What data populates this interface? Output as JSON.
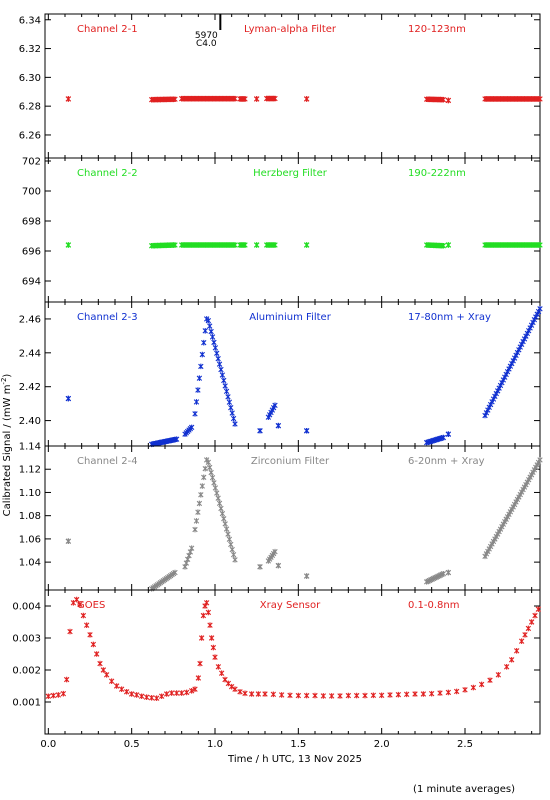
{
  "figure": {
    "xlabel": "Time / h UTC, 13 Nov 2025",
    "ylabel": "Calibrated Signal / (mW m",
    "ylabel_sup": "-2",
    "ylabel_tail": ")",
    "footnote": "(1 minute averages)",
    "x_ticks": [
      "0.0",
      "0.5",
      "1.0",
      "1.5",
      "2.0",
      "2.5"
    ],
    "marker_annotation": [
      "5970",
      "C4.0"
    ]
  },
  "chart_data": [
    {
      "type": "scatter",
      "channel": "Channel 2-1",
      "filter": "Lyman-alpha Filter",
      "band": "120-123nm",
      "color": "#e02020",
      "xlim": [
        -0.02,
        2.95
      ],
      "ylim": [
        6.244,
        6.344
      ],
      "y_ticks": [
        "6.26",
        "6.28",
        "6.30",
        "6.32",
        "6.34"
      ],
      "segments": [
        {
          "x": [
            0.12,
            0.12
          ],
          "y": [
            6.285,
            6.285
          ]
        },
        {
          "x": [
            0.62,
            0.76
          ],
          "y": [
            6.2845,
            6.2848
          ]
        },
        {
          "x": [
            0.8,
            1.12
          ],
          "y": [
            6.2852,
            6.2852
          ]
        },
        {
          "x": [
            1.15,
            1.18
          ],
          "y": [
            6.285,
            6.285
          ]
        },
        {
          "x": [
            1.25,
            1.25
          ],
          "y": [
            6.285,
            6.285
          ]
        },
        {
          "x": [
            1.31,
            1.36
          ],
          "y": [
            6.2853,
            6.2853
          ]
        },
        {
          "x": [
            1.55,
            1.55
          ],
          "y": [
            6.285,
            6.285
          ]
        },
        {
          "x": [
            2.27,
            2.37
          ],
          "y": [
            6.2848,
            6.2845
          ]
        },
        {
          "x": [
            2.4,
            2.4
          ],
          "y": [
            6.284,
            6.284
          ]
        },
        {
          "x": [
            2.62,
            2.95
          ],
          "y": [
            6.285,
            6.285
          ]
        }
      ]
    },
    {
      "type": "scatter",
      "channel": "Channel 2-2",
      "filter": "Herzberg Filter",
      "band": "190-222nm",
      "color": "#22dd22",
      "xlim": [
        -0.02,
        2.95
      ],
      "ylim": [
        692.6,
        702.2
      ],
      "y_ticks": [
        "694",
        "696",
        "698",
        "700",
        "702"
      ],
      "segments": [
        {
          "x": [
            0.12,
            0.12
          ],
          "y": [
            696.4,
            696.4
          ]
        },
        {
          "x": [
            0.62,
            0.76
          ],
          "y": [
            696.35,
            696.4
          ]
        },
        {
          "x": [
            0.8,
            1.12
          ],
          "y": [
            696.4,
            696.4
          ]
        },
        {
          "x": [
            1.15,
            1.18
          ],
          "y": [
            696.4,
            696.4
          ]
        },
        {
          "x": [
            1.25,
            1.25
          ],
          "y": [
            696.4,
            696.4
          ]
        },
        {
          "x": [
            1.31,
            1.36
          ],
          "y": [
            696.4,
            696.4
          ]
        },
        {
          "x": [
            1.55,
            1.55
          ],
          "y": [
            696.4,
            696.4
          ]
        },
        {
          "x": [
            2.27,
            2.37
          ],
          "y": [
            696.4,
            696.35
          ]
        },
        {
          "x": [
            2.4,
            2.4
          ],
          "y": [
            696.4,
            696.4
          ]
        },
        {
          "x": [
            2.62,
            2.95
          ],
          "y": [
            696.4,
            696.4
          ]
        }
      ]
    },
    {
      "type": "scatter",
      "channel": "Channel 2-3",
      "filter": "Aluminium Filter",
      "band": "17-80nm + Xray",
      "color": "#1030d0",
      "xlim": [
        -0.02,
        2.95
      ],
      "ylim": [
        2.385,
        2.47
      ],
      "y_ticks": [
        "2.40",
        "2.42",
        "2.44",
        "2.46"
      ],
      "segments": [
        {
          "x": [
            0.12,
            0.12
          ],
          "y": [
            2.413,
            2.413
          ]
        },
        {
          "x": [
            0.62,
            0.77
          ],
          "y": [
            2.386,
            2.389
          ]
        },
        {
          "x": [
            0.82,
            0.86
          ],
          "y": [
            2.392,
            2.396
          ]
        },
        {
          "x": [
            0.88,
            0.95
          ],
          "y": [
            2.404,
            2.46
          ]
        },
        {
          "x": [
            0.96,
            1.12
          ],
          "y": [
            2.459,
            2.398
          ]
        },
        {
          "x": [
            1.27,
            1.27
          ],
          "y": [
            2.394,
            2.394
          ]
        },
        {
          "x": [
            1.32,
            1.36
          ],
          "y": [
            2.402,
            2.409
          ]
        },
        {
          "x": [
            1.38,
            1.38
          ],
          "y": [
            2.397,
            2.397
          ]
        },
        {
          "x": [
            1.55,
            1.55
          ],
          "y": [
            2.394,
            2.394
          ]
        },
        {
          "x": [
            2.27,
            2.37
          ],
          "y": [
            2.387,
            2.39
          ]
        },
        {
          "x": [
            2.4,
            2.4
          ],
          "y": [
            2.392,
            2.392
          ]
        },
        {
          "x": [
            2.62,
            2.95
          ],
          "y": [
            2.403,
            2.466
          ]
        }
      ]
    },
    {
      "type": "scatter",
      "channel": "Channel 2-4",
      "filter": "Zirconium Filter",
      "band": "6-20nm + Xray",
      "color": "#888888",
      "xlim": [
        -0.02,
        2.95
      ],
      "ylim": [
        1.016,
        1.14
      ],
      "y_ticks": [
        "1.04",
        "1.06",
        "1.08",
        "1.10",
        "1.12",
        "1.14"
      ],
      "segments": [
        {
          "x": [
            0.12,
            0.12
          ],
          "y": [
            1.058,
            1.058
          ]
        },
        {
          "x": [
            0.62,
            0.76
          ],
          "y": [
            1.017,
            1.031
          ]
        },
        {
          "x": [
            0.82,
            0.86
          ],
          "y": [
            1.036,
            1.052
          ]
        },
        {
          "x": [
            0.88,
            0.95
          ],
          "y": [
            1.068,
            1.128
          ]
        },
        {
          "x": [
            0.96,
            1.12
          ],
          "y": [
            1.126,
            1.042
          ]
        },
        {
          "x": [
            1.27,
            1.27
          ],
          "y": [
            1.036,
            1.036
          ]
        },
        {
          "x": [
            1.32,
            1.36
          ],
          "y": [
            1.041,
            1.049
          ]
        },
        {
          "x": [
            1.38,
            1.38
          ],
          "y": [
            1.037,
            1.037
          ]
        },
        {
          "x": [
            1.55,
            1.55
          ],
          "y": [
            1.028,
            1.028
          ]
        },
        {
          "x": [
            2.27,
            2.37
          ],
          "y": [
            1.023,
            1.03
          ]
        },
        {
          "x": [
            2.4,
            2.4
          ],
          "y": [
            1.031,
            1.031
          ]
        },
        {
          "x": [
            2.62,
            2.95
          ],
          "y": [
            1.045,
            1.128
          ]
        }
      ]
    },
    {
      "type": "scatter",
      "channel": "GOES",
      "filter": "Xray Sensor",
      "band": "0.1-0.8nm",
      "color": "#e02020",
      "xlim": [
        -0.02,
        2.95
      ],
      "ylim": [
        0.0,
        0.0045
      ],
      "y_ticks": [
        "0.001",
        "0.002",
        "0.003",
        "0.004"
      ],
      "series": [
        {
          "x": [
            0.0,
            0.03,
            0.06,
            0.09,
            0.11,
            0.13,
            0.15,
            0.17,
            0.19,
            0.21,
            0.23,
            0.25,
            0.27,
            0.29,
            0.31,
            0.33,
            0.35,
            0.38,
            0.41,
            0.44,
            0.47,
            0.5,
            0.53,
            0.56,
            0.59,
            0.62,
            0.65,
            0.68,
            0.71,
            0.74,
            0.77,
            0.8,
            0.83,
            0.86,
            0.88,
            0.9,
            0.91,
            0.92,
            0.93,
            0.94,
            0.95,
            0.96,
            0.97,
            0.98,
            0.99,
            1.0,
            1.02,
            1.04,
            1.06,
            1.08,
            1.1,
            1.12,
            1.15,
            1.18,
            1.22,
            1.26,
            1.3,
            1.35,
            1.4,
            1.45,
            1.5,
            1.55,
            1.6,
            1.65,
            1.7,
            1.75,
            1.8,
            1.85,
            1.9,
            1.95,
            2.0,
            2.05,
            2.1,
            2.15,
            2.2,
            2.25,
            2.3,
            2.35,
            2.4,
            2.45,
            2.5,
            2.55,
            2.6,
            2.65,
            2.7,
            2.75,
            2.78,
            2.81,
            2.84,
            2.86,
            2.88,
            2.9,
            2.92,
            2.94
          ],
          "y": [
            0.00118,
            0.0012,
            0.00122,
            0.00126,
            0.0017,
            0.0032,
            0.0041,
            0.0042,
            0.00405,
            0.0037,
            0.0034,
            0.0031,
            0.0028,
            0.0025,
            0.0022,
            0.002,
            0.00185,
            0.00165,
            0.0015,
            0.0014,
            0.00132,
            0.00125,
            0.00122,
            0.00118,
            0.00115,
            0.00113,
            0.00112,
            0.00118,
            0.00125,
            0.00128,
            0.00128,
            0.00128,
            0.0013,
            0.00135,
            0.0014,
            0.00175,
            0.0022,
            0.003,
            0.0037,
            0.004,
            0.0041,
            0.0038,
            0.0034,
            0.003,
            0.0027,
            0.0024,
            0.0021,
            0.0019,
            0.0017,
            0.00158,
            0.00148,
            0.0014,
            0.00132,
            0.00127,
            0.00125,
            0.00125,
            0.00125,
            0.00124,
            0.00122,
            0.00121,
            0.0012,
            0.0012,
            0.0012,
            0.00119,
            0.00119,
            0.00119,
            0.0012,
            0.0012,
            0.0012,
            0.00121,
            0.00121,
            0.00122,
            0.00123,
            0.00124,
            0.00125,
            0.00125,
            0.00126,
            0.00128,
            0.0013,
            0.00133,
            0.00138,
            0.00145,
            0.00155,
            0.00168,
            0.00185,
            0.0021,
            0.00232,
            0.0026,
            0.0029,
            0.0031,
            0.0033,
            0.0035,
            0.0037,
            0.0039
          ]
        }
      ]
    }
  ]
}
